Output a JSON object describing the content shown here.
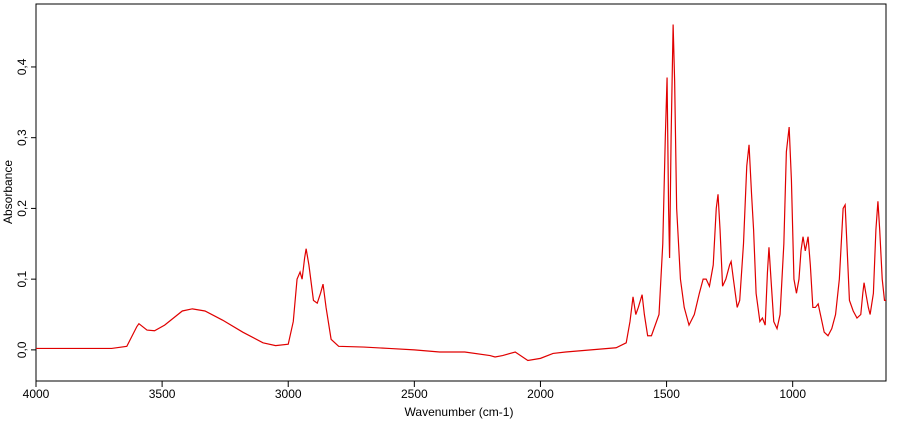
{
  "chart_data": {
    "type": "line",
    "xlabel": "Wavenumber (cm-1)",
    "ylabel": "Absorbance",
    "xlim": [
      4000,
      630
    ],
    "ylim": [
      -0.044,
      0.489
    ],
    "xticks": [
      4000,
      3500,
      3000,
      2500,
      2000,
      1500,
      1000
    ],
    "yticks": [
      {
        "value": 0,
        "label": "0,0"
      },
      {
        "value": 0.1,
        "label": "0,1"
      },
      {
        "value": 0.2,
        "label": "0,2"
      },
      {
        "value": 0.3,
        "label": "0,3"
      },
      {
        "value": 0.4,
        "label": "0,4"
      }
    ],
    "series": [
      {
        "color": "#e00000",
        "x": [
          4000,
          3700,
          3640,
          3600,
          3592,
          3560,
          3530,
          3490,
          3420,
          3380,
          3330,
          3260,
          3180,
          3100,
          3050,
          3000,
          2980,
          2965,
          2953,
          2945,
          2935,
          2929,
          2918,
          2900,
          2885,
          2872,
          2862,
          2850,
          2830,
          2800,
          2700,
          2600,
          2500,
          2400,
          2300,
          2200,
          2180,
          2150,
          2100,
          2050,
          2000,
          1950,
          1900,
          1800,
          1700,
          1660,
          1645,
          1633,
          1622,
          1612,
          1597,
          1588,
          1575,
          1560,
          1530,
          1515,
          1505,
          1498,
          1492,
          1488,
          1482,
          1474,
          1468,
          1460,
          1445,
          1430,
          1411,
          1390,
          1370,
          1355,
          1343,
          1330,
          1315,
          1303,
          1296,
          1288,
          1278,
          1265,
          1250,
          1244,
          1235,
          1220,
          1210,
          1195,
          1182,
          1173,
          1163,
          1155,
          1145,
          1130,
          1120,
          1109,
          1100,
          1094,
          1086,
          1075,
          1062,
          1050,
          1035,
          1025,
          1014,
          1005,
          995,
          985,
          975,
          967,
          959,
          950,
          939,
          930,
          920,
          910,
          899,
          890,
          875,
          860,
          845,
          830,
          815,
          800,
          792,
          785,
          775,
          760,
          745,
          730,
          722,
          717,
          710,
          700,
          693,
          680,
          670,
          662,
          655,
          645,
          636,
          630
        ],
        "values": [
          0.002,
          0.002,
          0.005,
          0.033,
          0.037,
          0.028,
          0.027,
          0.035,
          0.055,
          0.058,
          0.055,
          0.042,
          0.025,
          0.01,
          0.006,
          0.008,
          0.04,
          0.1,
          0.11,
          0.1,
          0.13,
          0.143,
          0.12,
          0.07,
          0.066,
          0.08,
          0.093,
          0.06,
          0.015,
          0.005,
          0.004,
          0.002,
          0.0,
          -0.003,
          -0.003,
          -0.008,
          -0.01,
          -0.008,
          -0.003,
          -0.015,
          -0.012,
          -0.005,
          -0.003,
          0.0,
          0.003,
          0.01,
          0.04,
          0.075,
          0.05,
          0.06,
          0.078,
          0.05,
          0.02,
          0.02,
          0.05,
          0.15,
          0.3,
          0.385,
          0.2,
          0.13,
          0.3,
          0.46,
          0.38,
          0.2,
          0.1,
          0.06,
          0.035,
          0.05,
          0.08,
          0.1,
          0.1,
          0.09,
          0.12,
          0.2,
          0.22,
          0.17,
          0.09,
          0.1,
          0.12,
          0.125,
          0.1,
          0.06,
          0.07,
          0.15,
          0.26,
          0.29,
          0.22,
          0.17,
          0.08,
          0.04,
          0.045,
          0.035,
          0.11,
          0.145,
          0.1,
          0.04,
          0.03,
          0.05,
          0.15,
          0.28,
          0.315,
          0.24,
          0.1,
          0.08,
          0.1,
          0.14,
          0.16,
          0.14,
          0.16,
          0.12,
          0.06,
          0.06,
          0.065,
          0.05,
          0.025,
          0.02,
          0.03,
          0.05,
          0.1,
          0.2,
          0.205,
          0.15,
          0.07,
          0.055,
          0.045,
          0.05,
          0.08,
          0.095,
          0.08,
          0.06,
          0.05,
          0.08,
          0.17,
          0.21,
          0.17,
          0.1,
          0.07,
          0.07
        ]
      }
    ]
  }
}
